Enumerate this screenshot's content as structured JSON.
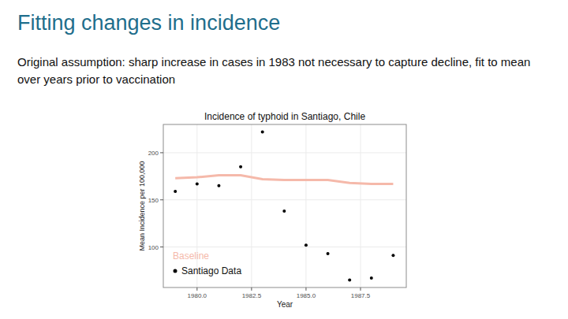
{
  "slide": {
    "title": "Fitting changes in incidence",
    "text": "Original assumption: sharp increase in cases in 1983 not necessary to capture decline, fit to mean over years prior to vaccination"
  },
  "chart_data": {
    "type": "line",
    "title": "Incidence of typhoid in Santiago, Chile",
    "x_label": "Year",
    "y_label": "Mean Incidence per 100,000",
    "x": [
      1979,
      1980,
      1981,
      1982,
      1983,
      1984,
      1985,
      1986,
      1987,
      1988,
      1989
    ],
    "series": [
      {
        "name": "Baseline",
        "type": "line",
        "color": "#f5b9aa",
        "line_style": "solid",
        "values": [
          173,
          174,
          176,
          176,
          172,
          171,
          171,
          171,
          168,
          167,
          167
        ]
      },
      {
        "name": "Santiago Data",
        "type": "scatter",
        "color": "#000000",
        "marker": "circle",
        "values": [
          159,
          167,
          165,
          185,
          222,
          138,
          102,
          93,
          65,
          67,
          91
        ]
      }
    ],
    "xlim": [
      1978.45,
      1989.6
    ],
    "xticks": [
      {
        "value": 1980,
        "label": "1980.0"
      },
      1982.5,
      {
        "value": 1985,
        "label": "1985.0"
      },
      1987.5
    ],
    "ylim": [
      57,
      230
    ],
    "yticks": [
      100,
      150,
      200
    ],
    "grid": true,
    "legend": "bottom-left"
  }
}
